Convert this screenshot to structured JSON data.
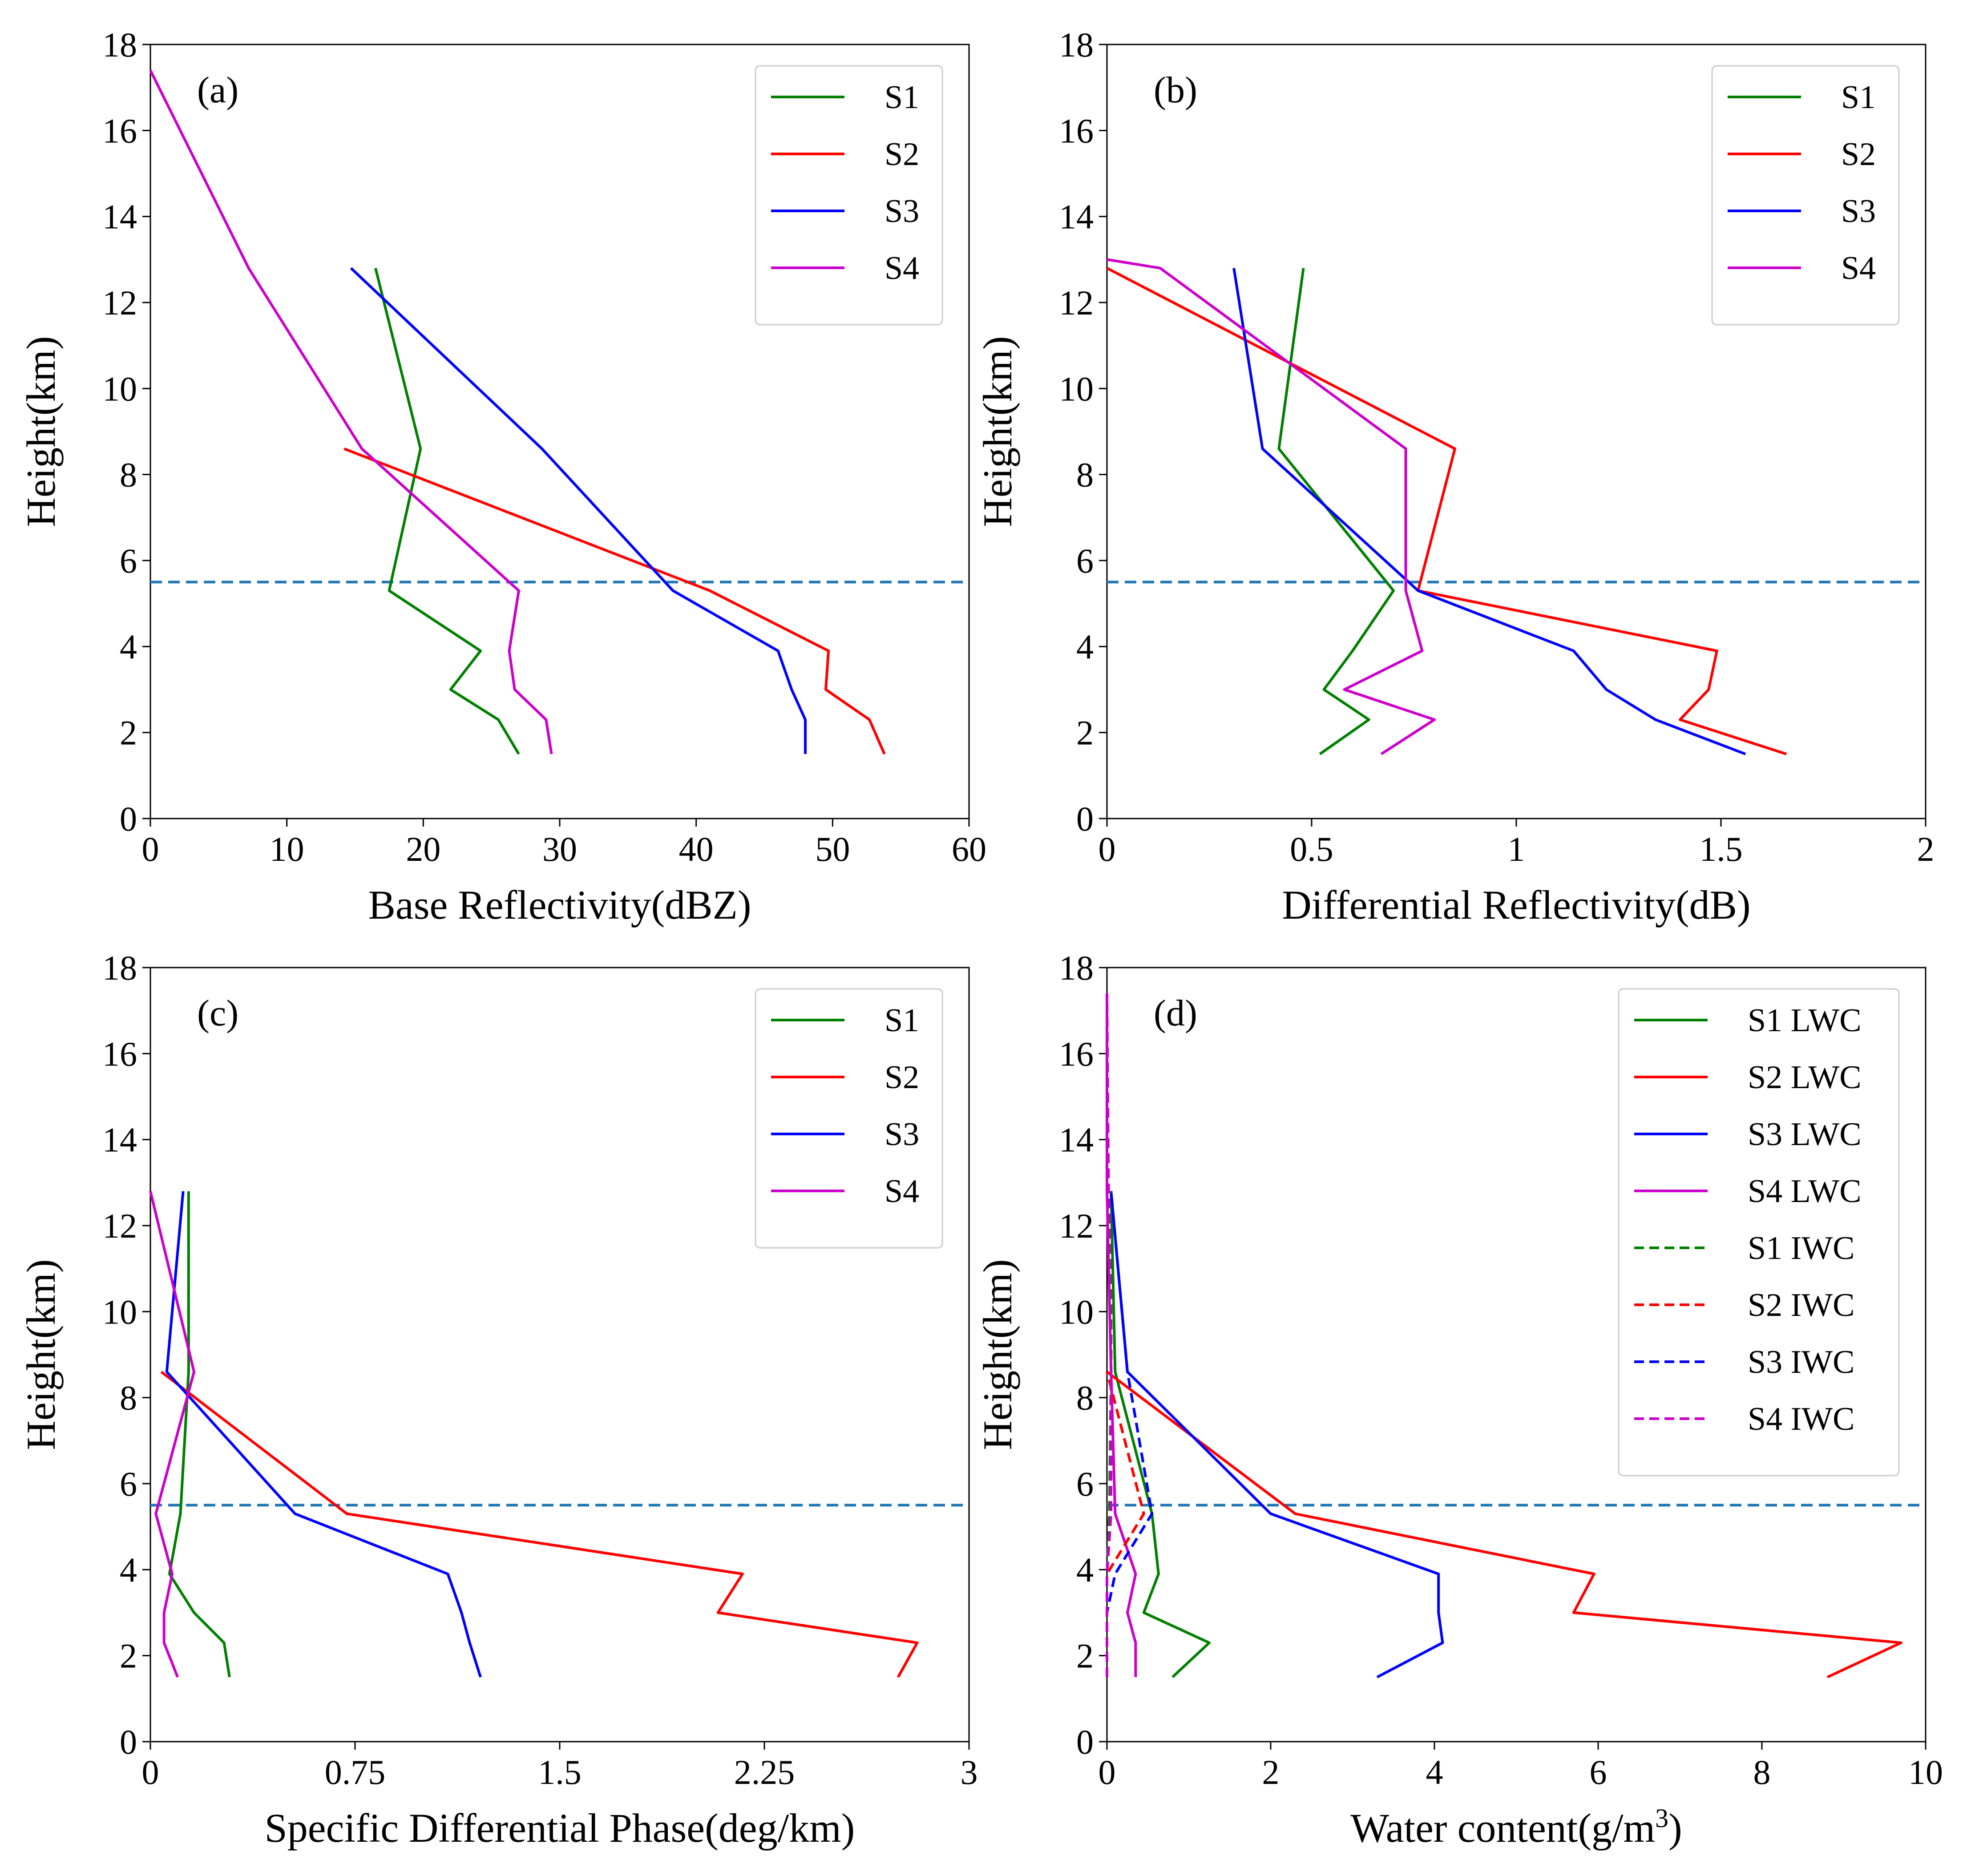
{
  "figure": {
    "panel_labels": [
      "(a)",
      "(b)",
      "(c)",
      "(d)"
    ]
  },
  "colors": {
    "S1": "#008000",
    "S2": "#ff0000",
    "S3": "#0000ff",
    "S4": "#cc00cc",
    "melting_layer": "#1f77b4"
  },
  "chart_data": [
    {
      "type": "line",
      "panel": "(a)",
      "title": "",
      "xlabel": "Base Reflectivity(dBZ)",
      "ylabel": "Height(km)",
      "xlim": [
        0,
        60
      ],
      "ylim": [
        0,
        18
      ],
      "xticks": [
        0,
        10,
        20,
        30,
        40,
        50,
        60
      ],
      "xtick_labels": [
        "0",
        "10",
        "20",
        "30",
        "40",
        "50",
        "60"
      ],
      "yticks": [
        0,
        2,
        4,
        6,
        8,
        10,
        12,
        14,
        16,
        18
      ],
      "ytick_labels": [
        "0",
        "2",
        "4",
        "6",
        "8",
        "10",
        "12",
        "14",
        "16",
        "18"
      ],
      "reference_line": {
        "y": 5.5,
        "style": "dashed"
      },
      "legend": [
        "S1",
        "S2",
        "S3",
        "S4"
      ],
      "legend_position": "top-right",
      "series": [
        {
          "name": "S1",
          "color_key": "S1",
          "dash": false,
          "x": [
            27.0,
            25.5,
            22.0,
            24.2,
            17.5,
            19.8,
            16.5
          ],
          "y": [
            1.5,
            2.3,
            3.0,
            3.9,
            5.3,
            8.6,
            12.8
          ]
        },
        {
          "name": "S2",
          "color_key": "S2",
          "dash": false,
          "x": [
            53.8,
            52.7,
            49.5,
            49.7,
            41.0,
            14.2
          ],
          "y": [
            1.5,
            2.3,
            3.0,
            3.9,
            5.3,
            8.6
          ]
        },
        {
          "name": "S3",
          "color_key": "S3",
          "dash": false,
          "x": [
            48.0,
            48.0,
            47.0,
            46.0,
            38.3,
            28.7,
            14.7
          ],
          "y": [
            1.5,
            2.3,
            3.0,
            3.9,
            5.3,
            8.6,
            12.8
          ]
        },
        {
          "name": "S4",
          "color_key": "S4",
          "dash": false,
          "x": [
            29.4,
            29.0,
            26.7,
            26.3,
            27.0,
            15.5,
            7.2,
            0.0
          ],
          "y": [
            1.5,
            2.3,
            3.0,
            3.9,
            5.3,
            8.6,
            12.8,
            17.4
          ]
        }
      ]
    },
    {
      "type": "line",
      "panel": "(b)",
      "title": "",
      "xlabel": "Differential Reflectivity(dB)",
      "ylabel": "Height(km)",
      "xlim": [
        0,
        2
      ],
      "ylim": [
        0,
        18
      ],
      "xticks": [
        0,
        0.5,
        1,
        1.5,
        2
      ],
      "xtick_labels": [
        "0",
        "0.5",
        "1",
        "1.5",
        "2"
      ],
      "yticks": [
        0,
        2,
        4,
        6,
        8,
        10,
        12,
        14,
        16,
        18
      ],
      "ytick_labels": [
        "0",
        "2",
        "4",
        "6",
        "8",
        "10",
        "12",
        "14",
        "16",
        "18"
      ],
      "reference_line": {
        "y": 5.5,
        "style": "dashed"
      },
      "legend": [
        "S1",
        "S2",
        "S3",
        "S4"
      ],
      "legend_position": "top-right",
      "series": [
        {
          "name": "S1",
          "color_key": "S1",
          "dash": false,
          "x": [
            0.52,
            0.64,
            0.53,
            0.6,
            0.7,
            0.42,
            0.48
          ],
          "y": [
            1.5,
            2.3,
            3.0,
            3.9,
            5.3,
            8.6,
            12.8
          ]
        },
        {
          "name": "S2",
          "color_key": "S2",
          "dash": false,
          "x": [
            1.66,
            1.4,
            1.47,
            1.49,
            0.76,
            0.85,
            0.0
          ],
          "y": [
            1.5,
            2.3,
            3.0,
            3.9,
            5.3,
            8.6,
            12.8
          ]
        },
        {
          "name": "S3",
          "color_key": "S3",
          "dash": false,
          "x": [
            1.56,
            1.34,
            1.22,
            1.14,
            0.76,
            0.38,
            0.31
          ],
          "y": [
            1.5,
            2.3,
            3.0,
            3.9,
            5.3,
            8.6,
            12.8
          ]
        },
        {
          "name": "S4",
          "color_key": "S4",
          "dash": false,
          "x": [
            0.67,
            0.8,
            0.58,
            0.77,
            0.73,
            0.73,
            0.13,
            0.0
          ],
          "y": [
            1.5,
            2.3,
            3.0,
            3.9,
            5.3,
            8.6,
            12.8,
            13.0
          ]
        }
      ]
    },
    {
      "type": "line",
      "panel": "(c)",
      "title": "",
      "xlabel": "Specific Differential Phase(deg/km)",
      "ylabel": "Height(km)",
      "xlim": [
        0,
        3
      ],
      "ylim": [
        0,
        18
      ],
      "xticks": [
        0,
        0.75,
        1.5,
        2.25,
        3
      ],
      "xtick_labels": [
        "0",
        "0.75",
        "1.5",
        "2.25",
        "3"
      ],
      "yticks": [
        0,
        2,
        4,
        6,
        8,
        10,
        12,
        14,
        16,
        18
      ],
      "ytick_labels": [
        "0",
        "2",
        "4",
        "6",
        "8",
        "10",
        "12",
        "14",
        "16",
        "18"
      ],
      "reference_line": {
        "y": 5.5,
        "style": "dashed"
      },
      "legend": [
        "S1",
        "S2",
        "S3",
        "S4"
      ],
      "legend_position": "top-right",
      "series": [
        {
          "name": "S1",
          "color_key": "S1",
          "dash": false,
          "x": [
            0.29,
            0.27,
            0.16,
            0.07,
            0.11,
            0.14,
            0.14
          ],
          "y": [
            1.5,
            2.3,
            3.0,
            3.9,
            5.3,
            8.6,
            12.8
          ]
        },
        {
          "name": "S2",
          "color_key": "S2",
          "dash": false,
          "x": [
            2.74,
            2.81,
            2.08,
            2.17,
            0.72,
            0.04
          ],
          "y": [
            1.5,
            2.3,
            3.0,
            3.9,
            5.3,
            8.6
          ]
        },
        {
          "name": "S3",
          "color_key": "S3",
          "dash": false,
          "x": [
            1.21,
            1.17,
            1.14,
            1.09,
            0.53,
            0.06,
            0.12
          ],
          "y": [
            1.5,
            2.3,
            3.0,
            3.9,
            5.3,
            8.6,
            12.8
          ]
        },
        {
          "name": "S4",
          "color_key": "S4",
          "dash": false,
          "x": [
            0.1,
            0.05,
            0.05,
            0.08,
            0.02,
            0.16,
            0.0
          ],
          "y": [
            1.5,
            2.3,
            3.0,
            3.9,
            5.3,
            8.6,
            12.8
          ]
        }
      ]
    },
    {
      "type": "line",
      "panel": "(d)",
      "title": "",
      "xlabel": "Water content(g/m",
      "xlabel_superscript": "3",
      "xlabel_suffix": ")",
      "ylabel": "Height(km)",
      "xlim": [
        0,
        10
      ],
      "ylim": [
        0,
        18
      ],
      "xticks": [
        0,
        2,
        4,
        6,
        8,
        10
      ],
      "xtick_labels": [
        "0",
        "2",
        "4",
        "6",
        "8",
        "10"
      ],
      "yticks": [
        0,
        2,
        4,
        6,
        8,
        10,
        12,
        14,
        16,
        18
      ],
      "ytick_labels": [
        "0",
        "2",
        "4",
        "6",
        "8",
        "10",
        "12",
        "14",
        "16",
        "18"
      ],
      "reference_line": {
        "y": 5.5,
        "style": "dashed"
      },
      "legend": [
        "S1 LWC",
        "S2 LWC",
        "S3 LWC",
        "S4 LWC",
        "S1 IWC",
        "S2 IWC",
        "S3 IWC",
        "S4 IWC"
      ],
      "legend_position": "top-right",
      "series": [
        {
          "name": "S1 LWC",
          "color_key": "S1",
          "dash": false,
          "x": [
            0.8,
            1.25,
            0.45,
            0.63,
            0.55,
            0.1,
            0.05
          ],
          "y": [
            1.5,
            2.3,
            3.0,
            3.9,
            5.3,
            8.6,
            12.8
          ]
        },
        {
          "name": "S2 LWC",
          "color_key": "S2",
          "dash": false,
          "x": [
            8.8,
            9.7,
            5.7,
            5.95,
            2.3,
            0.0
          ],
          "y": [
            1.5,
            2.3,
            3.0,
            3.9,
            5.3,
            8.6
          ]
        },
        {
          "name": "S3 LWC",
          "color_key": "S3",
          "dash": false,
          "x": [
            3.3,
            4.1,
            4.05,
            4.05,
            2.0,
            0.25,
            0.05
          ],
          "y": [
            1.5,
            2.3,
            3.0,
            3.9,
            5.3,
            8.6,
            12.8
          ]
        },
        {
          "name": "S4 LWC",
          "color_key": "S4",
          "dash": false,
          "x": [
            0.35,
            0.35,
            0.25,
            0.35,
            0.1,
            0.05,
            0.0,
            0.0
          ],
          "y": [
            1.5,
            2.3,
            3.0,
            3.9,
            5.3,
            8.6,
            12.8,
            17.4
          ]
        },
        {
          "name": "S1 IWC",
          "color_key": "S1",
          "dash": true,
          "x": [
            0.0,
            0.0,
            0.0,
            0.0,
            0.03,
            0.05,
            0.05
          ],
          "y": [
            1.5,
            2.3,
            3.0,
            3.9,
            5.3,
            8.6,
            12.8
          ]
        },
        {
          "name": "S2 IWC",
          "color_key": "S2",
          "dash": true,
          "x": [
            0.0,
            0.0,
            0.0,
            0.0,
            0.45,
            0.0
          ],
          "y": [
            1.5,
            2.3,
            3.0,
            3.9,
            5.3,
            8.6
          ]
        },
        {
          "name": "S3 IWC",
          "color_key": "S3",
          "dash": true,
          "x": [
            0.0,
            0.0,
            0.0,
            0.1,
            0.55,
            0.25,
            0.05
          ],
          "y": [
            1.5,
            2.3,
            3.0,
            3.9,
            5.3,
            8.6,
            12.8
          ]
        },
        {
          "name": "S4 IWC",
          "color_key": "S4",
          "dash": true,
          "x": [
            0.0,
            0.0,
            0.0,
            0.0,
            0.05,
            0.05,
            0.02,
            0.0
          ],
          "y": [
            1.5,
            2.3,
            3.0,
            3.9,
            5.3,
            8.6,
            12.8,
            17.4
          ]
        }
      ]
    }
  ]
}
